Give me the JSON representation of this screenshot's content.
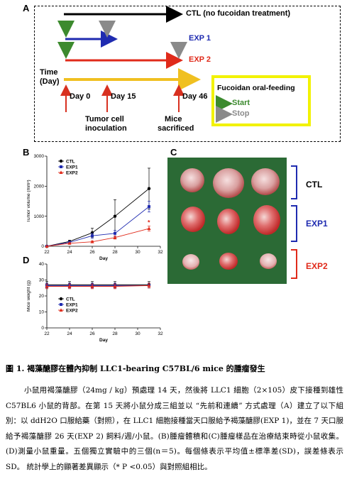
{
  "panel_letters": {
    "a": "A",
    "b": "B",
    "c": "C",
    "d": "D"
  },
  "timeline": {
    "ctl_label": "CTL (no fucoidan treatment)",
    "exp1_label": "EXP 1",
    "exp2_label": "EXP 2",
    "time_label_1": "Time",
    "time_label_2": "(Day)",
    "day0": "Day 0",
    "day15": "Day 15",
    "day46": "Day 46",
    "event1_line1": "Tumor cell",
    "event1_line2": "inoculation",
    "event2_line1": "Mice",
    "event2_line2": "sacrificed",
    "legend_title": "Fucoidan oral-feeding",
    "legend_start": "Start",
    "legend_stop": "Stop",
    "colors": {
      "ctl": "#000000",
      "exp1": "#1f2bb0",
      "exp2": "#e02a1a",
      "time": "#f0c020",
      "event": "#d83020",
      "start": "#3c8a2e",
      "stop": "#8a8a8a",
      "legend_border": "#f2f200"
    }
  },
  "chart_data": [
    {
      "type": "line",
      "panel": "B",
      "xlabel": "Day",
      "ylabel": "Tumor volume (mm³)",
      "xlim": [
        22,
        32
      ],
      "ylim": [
        0,
        3000
      ],
      "xticks": [
        22,
        24,
        26,
        28,
        30,
        32
      ],
      "yticks": [
        0,
        1000,
        2000,
        3000
      ],
      "legend_position": "top-left",
      "series": [
        {
          "name": "CTL",
          "color": "#000000",
          "marker": "circle",
          "x": [
            22,
            24,
            26,
            28,
            31
          ],
          "y": [
            0,
            160,
            450,
            1000,
            1920
          ],
          "err": [
            0,
            40,
            150,
            550,
            680
          ]
        },
        {
          "name": "EXP1",
          "color": "#1f2bb0",
          "marker": "square",
          "x": [
            22,
            24,
            26,
            28,
            31
          ],
          "y": [
            0,
            130,
            350,
            430,
            1320
          ],
          "err": [
            0,
            30,
            90,
            100,
            180
          ]
        },
        {
          "name": "EXP2",
          "color": "#e02a1a",
          "marker": "triangle",
          "x": [
            22,
            24,
            26,
            28,
            31
          ],
          "y": [
            0,
            100,
            150,
            290,
            590
          ],
          "err": [
            0,
            20,
            30,
            50,
            80
          ]
        }
      ],
      "annotation": "*"
    },
    {
      "type": "line",
      "panel": "D",
      "xlabel": "Day",
      "ylabel": "Mice weight (g)",
      "xlim": [
        22,
        32
      ],
      "ylim": [
        0,
        40
      ],
      "xticks": [
        22,
        24,
        26,
        28,
        30,
        32
      ],
      "yticks": [
        0,
        10,
        20,
        30,
        40
      ],
      "legend_position": "bottom-left",
      "series": [
        {
          "name": "CTL",
          "color": "#000000",
          "marker": "circle",
          "x": [
            22,
            24,
            26,
            28,
            31
          ],
          "y": [
            27,
            27,
            27,
            27,
            27
          ],
          "err": [
            2,
            2,
            2,
            2,
            2
          ]
        },
        {
          "name": "EXP1",
          "color": "#1f2bb0",
          "marker": "square",
          "x": [
            22,
            24,
            26,
            28,
            31
          ],
          "y": [
            26.5,
            26.5,
            26.5,
            26.5,
            26.5
          ],
          "err": [
            1.5,
            1.5,
            1.5,
            1.5,
            1.5
          ]
        },
        {
          "name": "EXP2",
          "color": "#e02a1a",
          "marker": "triangle",
          "x": [
            22,
            24,
            26,
            28,
            31
          ],
          "y": [
            26,
            26,
            26,
            26,
            26.5
          ],
          "err": [
            1.5,
            1.5,
            1.5,
            1.5,
            1.5
          ]
        }
      ]
    }
  ],
  "photo": {
    "group_ctl": "CTL",
    "group_exp1": "EXP1",
    "group_exp2": "EXP2",
    "colors": {
      "background": "#2f6f3a",
      "ctl": "#1f2bb0",
      "exp1": "#1f2bb0",
      "exp2": "#e02a1a"
    }
  },
  "caption": {
    "title": "圖 1. 褐藻醣膠在體內抑制 LLC1-bearing C57BL/6 mice 的腫瘤發生",
    "body": "小鼠用褐藻醣膠（24mg / kg）預處理 14 天，然後將 LLC1 細胞（2×105）皮下接種到雄性 C57BL6 小鼠的背部。在第 15 天將小鼠分成三組並以 “先前和連續” 方式處理（A）建立了以下組別：以 ddH2O 口服給藥（對照），在 LLC1 細胞接種當天口服給予褐藻醣膠(EXP 1)，並在 7 天口服給予褐藻醣膠 26 天(EXP 2) 飼料/週/小鼠。(B)腫瘤體積和(C)腫瘤樣品在治療結束時從小鼠收集。(D)測量小鼠重量。五個獨立實驗中的三個(n＝5)。每個條表示平均值±標準差(SD)，誤差條表示 SD。 統計學上的顯著差異顯示（* P <0.05）與對照組相比。"
  }
}
